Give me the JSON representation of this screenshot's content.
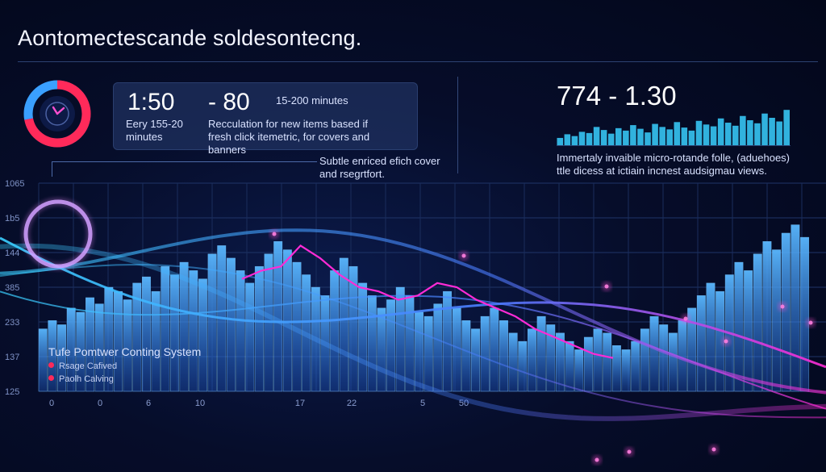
{
  "header": {
    "title": "Aontomectescande soldesontecng."
  },
  "stats": {
    "stat_a": "1:50",
    "stat_a_caption": "Eery 155-20 minutes",
    "stat_b": "- 80",
    "stat_b_caption": "Recculation for new items based if fresh click itemetric, for covers and banners",
    "range": "15-200 minutes"
  },
  "right_panel": {
    "value": "774 - 1.30",
    "note": "Immertaly invaible micro-rotande folle, (aduehoes) ttle dicess at ictiain incnest audsigmau views."
  },
  "callout": {
    "text": "Subtle enriced efich cover and rsegrtfort."
  },
  "legend": {
    "title": "Tufe Pomtwer Conting System",
    "items": [
      {
        "label": "Rsage Cafived",
        "color": "#ff2a5a"
      },
      {
        "label": "Paolh Calving",
        "color": "#ff2a5a"
      }
    ]
  },
  "colors": {
    "bar": "#3f9bff",
    "magenta": "#ff2bd6",
    "accent_red": "#ff2a5a",
    "cyan": "#3ad0ff"
  },
  "donut": {
    "fraction": 0.72,
    "icon": "clock-icon"
  },
  "mini_chart": {
    "values": [
      12,
      18,
      15,
      22,
      20,
      30,
      25,
      19,
      28,
      24,
      33,
      27,
      21,
      35,
      30,
      26,
      38,
      29,
      24,
      40,
      34,
      31,
      44,
      37,
      32,
      48,
      41,
      36,
      52,
      45,
      39,
      58
    ]
  },
  "chart_data": {
    "type": "bar",
    "title": "",
    "xlabel": "",
    "ylabel": "",
    "y_tick_labels": [
      "1065",
      "1b5",
      "144",
      "385",
      "233",
      "137",
      "125"
    ],
    "x_tick_labels": [
      "0",
      "0",
      "6",
      "10",
      "17",
      "22",
      "5",
      "50",
      "",
      ""
    ],
    "grid": true,
    "ylim": [
      0,
      100
    ],
    "values": [
      30,
      34,
      32,
      40,
      38,
      45,
      42,
      50,
      48,
      44,
      52,
      55,
      48,
      60,
      56,
      62,
      58,
      54,
      66,
      70,
      64,
      58,
      52,
      60,
      66,
      72,
      68,
      62,
      56,
      50,
      46,
      58,
      64,
      60,
      52,
      46,
      40,
      44,
      50,
      46,
      38,
      36,
      42,
      48,
      40,
      34,
      30,
      36,
      40,
      34,
      28,
      24,
      30,
      36,
      32,
      28,
      24,
      20,
      26,
      30,
      28,
      22,
      20,
      24,
      30,
      36,
      32,
      28,
      34,
      40,
      46,
      52,
      48,
      56,
      62,
      58,
      66,
      72,
      68,
      76,
      80,
      74
    ],
    "lines": [
      {
        "name": "",
        "color": "#ff2bd6",
        "values": [
          54,
          58,
          60,
          70,
          64,
          56,
          50,
          48,
          44,
          46,
          52,
          50,
          44,
          40,
          36,
          30,
          26,
          22,
          18,
          16
        ]
      }
    ]
  }
}
